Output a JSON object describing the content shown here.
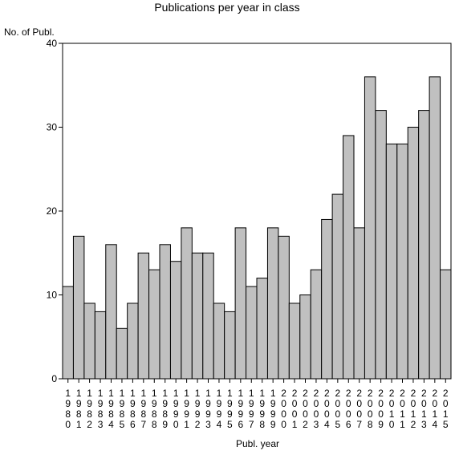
{
  "chart_data": {
    "type": "bar",
    "title": "Publications per year in class",
    "ylabel": "No. of Publ.",
    "xlabel": "Publ. year",
    "ylim": [
      0,
      40
    ],
    "yticks": [
      0,
      10,
      20,
      30,
      40
    ],
    "grid": false,
    "legend": "none",
    "bar_color": "#c0c0c0",
    "categories": [
      "1980",
      "1981",
      "1982",
      "1983",
      "1984",
      "1985",
      "1986",
      "1987",
      "1988",
      "1989",
      "1990",
      "1991",
      "1992",
      "1993",
      "1994",
      "1995",
      "1996",
      "1997",
      "1998",
      "1999",
      "2000",
      "2001",
      "2002",
      "2003",
      "2004",
      "2005",
      "2006",
      "2007",
      "2008",
      "2009",
      "2010",
      "2011",
      "2012",
      "2013",
      "2014",
      "2015"
    ],
    "values": [
      11,
      17,
      9,
      8,
      16,
      6,
      9,
      15,
      13,
      16,
      14,
      18,
      15,
      15,
      9,
      8,
      18,
      11,
      12,
      18,
      17,
      9,
      10,
      13,
      19,
      22,
      29,
      18,
      36,
      32,
      28,
      28,
      30,
      32,
      36,
      13
    ]
  }
}
